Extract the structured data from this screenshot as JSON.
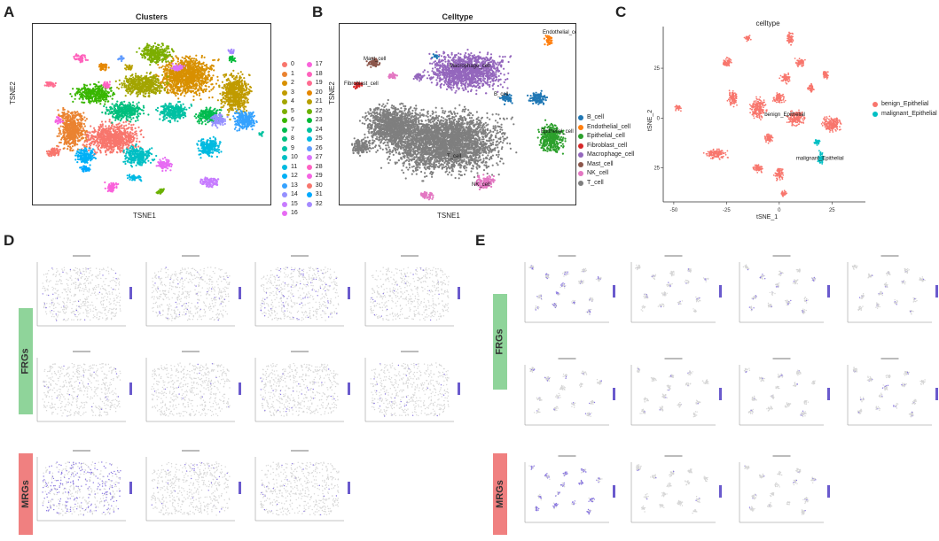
{
  "panels": {
    "A": {
      "letter": "A",
      "title": "Clusters",
      "xlabel": "TSNE1",
      "ylabel": "TSNE2",
      "legend_col1": [
        "0",
        "1",
        "2",
        "3",
        "4",
        "5",
        "6",
        "7",
        "8",
        "9",
        "10",
        "11",
        "12",
        "13",
        "14",
        "15",
        "16"
      ],
      "legend_col2": [
        "17",
        "18",
        "19",
        "20",
        "21",
        "22",
        "23",
        "24",
        "25",
        "26",
        "27",
        "28",
        "29",
        "30",
        "31",
        "32"
      ]
    },
    "B": {
      "letter": "B",
      "title": "Celltype",
      "xlabel": "TSNE1",
      "ylabel": "TSNE2",
      "legend": [
        {
          "name": "B_cell",
          "color": "#1f77b4"
        },
        {
          "name": "Endothelial_cell",
          "color": "#ff7f0e"
        },
        {
          "name": "Epithelial_cell",
          "color": "#2ca02c"
        },
        {
          "name": "Fibroblast_cell",
          "color": "#d62728"
        },
        {
          "name": "Macrophage_cell",
          "color": "#9467bd"
        },
        {
          "name": "Mast_cell",
          "color": "#8c564b"
        },
        {
          "name": "NK_cell",
          "color": "#e377c2"
        },
        {
          "name": "T_cell",
          "color": "#7f7f7f"
        }
      ],
      "annotations": [
        "Endothelial_cell",
        "Mast_cell",
        "Fibroblast_cell",
        "Macrophage_cell",
        "B_cell",
        "T_cell",
        "Epithelial_cell",
        "NK_cell"
      ]
    },
    "C": {
      "letter": "C",
      "title": "celltype",
      "xlabel": "tSNE_1",
      "ylabel": "tSNE_2",
      "legend": [
        {
          "name": "benign_Epithelial",
          "color": "#f8766d"
        },
        {
          "name": "malignant_Epithelial",
          "color": "#00bfc4"
        }
      ],
      "annotations": [
        "benign_Epithelial",
        "malignant_Epithelial"
      ],
      "xticks": [
        "-50",
        "-25",
        "0",
        "25"
      ],
      "yticks": [
        "25",
        "0",
        "-25"
      ]
    },
    "D": {
      "letter": "D",
      "row_labels": [
        "FRGs",
        "MRGs"
      ]
    },
    "E": {
      "letter": "E",
      "row_labels": [
        "FRGs",
        "MRGs"
      ]
    }
  },
  "chart_data": [
    {
      "type": "scatter",
      "title": "Clusters",
      "xlabel": "TSNE1",
      "ylabel": "TSNE2",
      "series": [
        {
          "name": "0"
        },
        {
          "name": "1"
        },
        {
          "name": "2"
        },
        {
          "name": "3"
        },
        {
          "name": "4"
        },
        {
          "name": "5"
        },
        {
          "name": "6"
        },
        {
          "name": "7"
        },
        {
          "name": "8"
        },
        {
          "name": "9"
        },
        {
          "name": "10"
        },
        {
          "name": "11"
        },
        {
          "name": "12"
        },
        {
          "name": "13"
        },
        {
          "name": "14"
        },
        {
          "name": "15"
        },
        {
          "name": "16"
        },
        {
          "name": "17"
        },
        {
          "name": "18"
        },
        {
          "name": "19"
        },
        {
          "name": "20"
        },
        {
          "name": "21"
        },
        {
          "name": "22"
        },
        {
          "name": "23"
        },
        {
          "name": "24"
        },
        {
          "name": "25"
        },
        {
          "name": "26"
        },
        {
          "name": "27"
        },
        {
          "name": "28"
        },
        {
          "name": "29"
        },
        {
          "name": "30"
        },
        {
          "name": "31"
        },
        {
          "name": "32"
        }
      ],
      "legend": "right"
    },
    {
      "type": "scatter",
      "title": "Celltype",
      "xlabel": "TSNE1",
      "ylabel": "TSNE2",
      "series": [
        {
          "name": "B_cell"
        },
        {
          "name": "Endothelial_cell"
        },
        {
          "name": "Epithelial_cell"
        },
        {
          "name": "Fibroblast_cell"
        },
        {
          "name": "Macrophage_cell"
        },
        {
          "name": "Mast_cell"
        },
        {
          "name": "NK_cell"
        },
        {
          "name": "T_cell"
        }
      ],
      "legend": "right"
    },
    {
      "type": "scatter",
      "title": "celltype",
      "xlabel": "tSNE_1",
      "ylabel": "tSNE_2",
      "xlim": [
        -55,
        40
      ],
      "ylim": [
        -42,
        45
      ],
      "series": [
        {
          "name": "benign_Epithelial"
        },
        {
          "name": "malignant_Epithelial"
        }
      ],
      "legend": "right"
    }
  ]
}
